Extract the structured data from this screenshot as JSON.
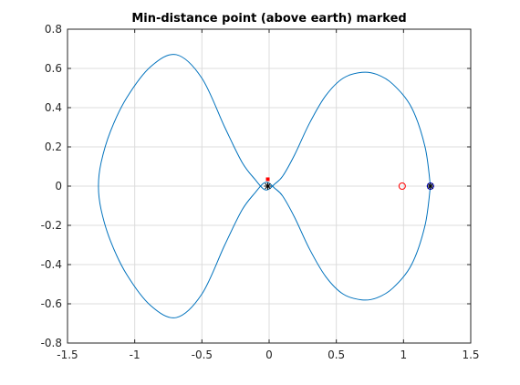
{
  "chart_data": {
    "type": "line",
    "title": "Min-distance point (above earth) marked",
    "xlabel": "",
    "ylabel": "",
    "xlim": [
      -1.5,
      1.5
    ],
    "ylim": [
      -0.8,
      0.8
    ],
    "xticks": [
      -1.5,
      -1,
      -0.5,
      0,
      0.5,
      1,
      1.5
    ],
    "xtick_labels": [
      "-1.5",
      "-1",
      "-0.5",
      "0",
      "0.5",
      "1",
      "1.5"
    ],
    "yticks": [
      -0.8,
      -0.6,
      -0.4,
      -0.2,
      0,
      0.2,
      0.4,
      0.6,
      0.8
    ],
    "ytick_labels": [
      "-0.8",
      "-0.6",
      "-0.4",
      "-0.2",
      "0",
      "0.2",
      "0.4",
      "0.6",
      "0.8"
    ],
    "grid": true,
    "series": [
      {
        "color": "#0072bd",
        "x": [
          1.2,
          1.16,
          1.06,
          0.92,
          0.8,
          0.69,
          0.55,
          0.42,
          0.3,
          0.19,
          0.1,
          0.04,
          0.01,
          -0.02,
          -0.05,
          -0.1,
          -0.2,
          -0.33,
          -0.5,
          -0.69,
          -0.88,
          -1.06,
          -1.18,
          -1.25,
          -1.27,
          -1.25,
          -1.18,
          -1.06,
          -0.88,
          -0.69,
          -0.5,
          -0.33,
          -0.2,
          -0.1,
          -0.05,
          -0.02,
          0.01,
          0.04,
          0.1,
          0.19,
          0.3,
          0.42,
          0.55,
          0.69,
          0.8,
          0.92,
          1.06,
          1.16,
          1.2
        ],
        "y": [
          0.0,
          0.2,
          0.4,
          0.52,
          0.57,
          0.58,
          0.55,
          0.46,
          0.32,
          0.16,
          0.05,
          0.01,
          -0.01,
          -0.02,
          -0.01,
          0.03,
          0.12,
          0.3,
          0.55,
          0.67,
          0.61,
          0.45,
          0.28,
          0.12,
          0.0,
          -0.12,
          -0.28,
          -0.45,
          -0.61,
          -0.67,
          -0.55,
          -0.3,
          -0.12,
          -0.03,
          0.01,
          0.02,
          0.01,
          -0.01,
          -0.05,
          -0.16,
          -0.32,
          -0.46,
          -0.55,
          -0.58,
          -0.57,
          -0.52,
          -0.4,
          -0.2,
          0.0
        ]
      }
    ],
    "markers": [
      {
        "x": -0.01,
        "y": 0.035,
        "shape": "filled-square",
        "color": "#ff0000"
      },
      {
        "x": 0.99,
        "y": 0.0,
        "shape": "circle",
        "color": "#ff0000"
      },
      {
        "x": -0.01,
        "y": 0.0,
        "shape": "asterisk",
        "color": "#000000"
      },
      {
        "x": 1.2,
        "y": 0.0,
        "shape": "circle",
        "color": "#0000ff"
      },
      {
        "x": 1.2,
        "y": 0.0,
        "shape": "asterisk",
        "color": "#000000"
      }
    ]
  }
}
